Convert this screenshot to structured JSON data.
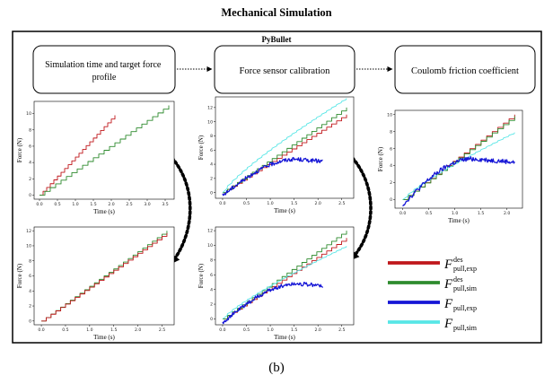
{
  "title": "Mechanical Simulation",
  "frame_label": "PyBullet",
  "caption": "(b)",
  "stages": [
    {
      "label": "Simulation time and target force profile"
    },
    {
      "label": "Force sensor calibration"
    },
    {
      "label": "Coulomb friction coefficient"
    }
  ],
  "colors": {
    "des_exp": "#c0171b",
    "des_sim": "#2e8b2e",
    "pull_exp": "#1515d6",
    "pull_sim": "#57e6e6"
  },
  "legend": [
    {
      "key": "des_exp",
      "base": "F",
      "sup": "des",
      "sub": "pull,exp"
    },
    {
      "key": "des_sim",
      "base": "F",
      "sup": "des",
      "sub": "pull,sim"
    },
    {
      "key": "pull_exp",
      "base": "F",
      "sup": "",
      "sub": "pull,exp"
    },
    {
      "key": "pull_sim",
      "base": "F",
      "sup": "",
      "sub": "pull,sim"
    }
  ],
  "chart_data": [
    {
      "id": "c1",
      "type": "line",
      "xlabel": "Time (s)",
      "ylabel": "Force (N)",
      "xlim": [
        -0.15,
        3.75
      ],
      "ylim": [
        -0.5,
        11.5
      ],
      "xticks": [
        0.0,
        0.5,
        1.0,
        1.5,
        2.0,
        2.5,
        3.0,
        3.5
      ],
      "yticks": [
        0,
        2,
        4,
        6,
        8,
        10
      ],
      "series": [
        {
          "key": "des_exp",
          "kind": "stair",
          "x0": 0.0,
          "x1": 2.1,
          "steps": 21,
          "y0": 0,
          "y1": 9.8
        },
        {
          "key": "des_sim",
          "kind": "stair",
          "x0": 0.0,
          "x1": 3.6,
          "steps": 24,
          "y0": 0,
          "y1": 11.0
        }
      ]
    },
    {
      "id": "c2",
      "type": "line",
      "xlabel": "Time (s)",
      "ylabel": "Force (N)",
      "xlim": [
        -0.15,
        2.75
      ],
      "ylim": [
        -0.8,
        13.5
      ],
      "xticks": [
        0.0,
        0.5,
        1.0,
        1.5,
        2.0,
        2.5
      ],
      "yticks": [
        0,
        2,
        4,
        6,
        8,
        10,
        12
      ],
      "series": [
        {
          "key": "des_exp",
          "kind": "stair",
          "x0": 0.0,
          "x1": 2.6,
          "steps": 25,
          "y0": 0,
          "y1": 11.0
        },
        {
          "key": "des_sim",
          "kind": "stair",
          "x0": 0.0,
          "x1": 2.6,
          "steps": 25,
          "y0": 0,
          "y1": 12.0
        },
        {
          "key": "pull_sim",
          "kind": "sim",
          "x0": 0.0,
          "x1": 2.6,
          "steps": 25,
          "y0": 0,
          "y1": 13.3
        },
        {
          "key": "pull_exp",
          "kind": "exp",
          "x0": 0.0,
          "x1": 2.1,
          "y0": -0.4,
          "peak_x": 1.55,
          "peak_y": 4.7,
          "y_end": 4.4
        }
      ]
    },
    {
      "id": "c3",
      "type": "line",
      "xlabel": "Time (s)",
      "ylabel": "Force (N)",
      "xlim": [
        -0.15,
        2.3
      ],
      "ylim": [
        -1.0,
        10.5
      ],
      "xticks": [
        0.0,
        0.5,
        1.0,
        1.5,
        2.0
      ],
      "yticks": [
        0,
        2,
        4,
        6,
        8,
        10
      ],
      "series": [
        {
          "key": "des_exp",
          "kind": "stair",
          "x0": 0.0,
          "x1": 2.15,
          "steps": 20,
          "y0": 0,
          "y1": 10.0
        },
        {
          "key": "des_sim",
          "kind": "stair",
          "x0": 0.0,
          "x1": 2.15,
          "steps": 20,
          "y0": 0,
          "y1": 9.8
        },
        {
          "key": "pull_sim",
          "kind": "sim",
          "x0": 0.0,
          "x1": 2.15,
          "steps": 20,
          "y0": 0,
          "y1": 7.9
        },
        {
          "key": "pull_exp",
          "kind": "exp",
          "x0": 0.0,
          "x1": 2.15,
          "y0": -0.6,
          "peak_x": 1.35,
          "peak_y": 4.8,
          "y_end": 4.4
        }
      ]
    },
    {
      "id": "c4",
      "type": "line",
      "xlabel": "Time (s)",
      "ylabel": "Force (N)",
      "xlim": [
        -0.15,
        2.75
      ],
      "ylim": [
        -0.5,
        12.5
      ],
      "xticks": [
        0.0,
        0.5,
        1.0,
        1.5,
        2.0,
        2.5
      ],
      "yticks": [
        0,
        2,
        4,
        6,
        8,
        10,
        12
      ],
      "series": [
        {
          "key": "des_sim",
          "kind": "stair",
          "x0": 0.0,
          "x1": 2.6,
          "steps": 26,
          "y0": 0,
          "y1": 12.0
        },
        {
          "key": "des_exp",
          "kind": "stair",
          "x0": 0.0,
          "x1": 2.6,
          "steps": 26,
          "y0": 0,
          "y1": 11.7
        }
      ]
    },
    {
      "id": "c5",
      "type": "line",
      "xlabel": "Time (s)",
      "ylabel": "Force (N)",
      "xlim": [
        -0.15,
        2.75
      ],
      "ylim": [
        -0.8,
        12.5
      ],
      "xticks": [
        0.0,
        0.5,
        1.0,
        1.5,
        2.0,
        2.5
      ],
      "yticks": [
        0,
        2,
        4,
        6,
        8,
        10,
        12
      ],
      "series": [
        {
          "key": "des_exp",
          "kind": "stair",
          "x0": 0.0,
          "x1": 2.6,
          "steps": 25,
          "y0": 0,
          "y1": 11.0
        },
        {
          "key": "des_sim",
          "kind": "stair",
          "x0": 0.0,
          "x1": 2.6,
          "steps": 25,
          "y0": 0,
          "y1": 12.0
        },
        {
          "key": "pull_sim",
          "kind": "sim",
          "x0": 0.0,
          "x1": 2.6,
          "steps": 25,
          "y0": 0,
          "y1": 9.9
        },
        {
          "key": "pull_exp",
          "kind": "exp",
          "x0": 0.0,
          "x1": 2.1,
          "y0": -0.5,
          "peak_x": 1.6,
          "peak_y": 4.8,
          "y_end": 4.5
        }
      ]
    }
  ]
}
